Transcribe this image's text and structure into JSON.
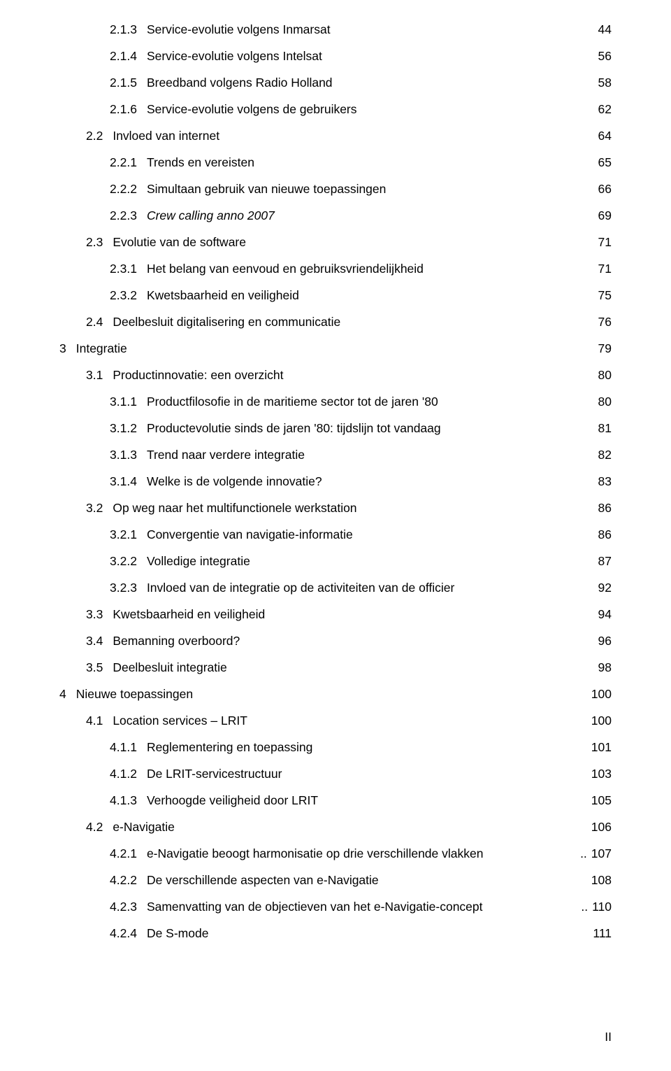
{
  "page_footer": "II",
  "text_color": "#000000",
  "background_color": "#ffffff",
  "font_family": "Verdana, Geneva, sans-serif",
  "base_font_size_pt": 13,
  "entries": [
    {
      "indent": 2,
      "num": "2.1.3",
      "title": "Service-evolutie volgens Inmarsat",
      "page": "44",
      "italic": false
    },
    {
      "indent": 2,
      "num": "2.1.4",
      "title": "Service-evolutie volgens Intelsat",
      "page": "56",
      "italic": false
    },
    {
      "indent": 2,
      "num": "2.1.5",
      "title": "Breedband volgens Radio Holland",
      "page": "58",
      "italic": false
    },
    {
      "indent": 2,
      "num": "2.1.6",
      "title": "Service-evolutie volgens de gebruikers",
      "page": "62",
      "italic": false
    },
    {
      "indent": 1,
      "num": "2.2",
      "title": "Invloed van internet",
      "page": "64",
      "italic": false
    },
    {
      "indent": 2,
      "num": "2.2.1",
      "title": "Trends en vereisten",
      "page": "65",
      "italic": false
    },
    {
      "indent": 2,
      "num": "2.2.2",
      "title": "Simultaan gebruik van nieuwe toepassingen",
      "page": "66",
      "italic": false
    },
    {
      "indent": 2,
      "num": "2.2.3",
      "title": "Crew calling anno 2007",
      "page": "69",
      "italic": true
    },
    {
      "indent": 1,
      "num": "2.3",
      "title": "Evolutie van de software",
      "page": "71",
      "italic": false
    },
    {
      "indent": 2,
      "num": "2.3.1",
      "title": "Het belang van eenvoud en gebruiksvriendelijkheid",
      "page": "71",
      "italic": false
    },
    {
      "indent": 2,
      "num": "2.3.2",
      "title": "Kwetsbaarheid en veiligheid",
      "page": "75",
      "italic": false
    },
    {
      "indent": 1,
      "num": "2.4",
      "title": "Deelbesluit digitalisering en communicatie",
      "page": "76",
      "italic": false
    },
    {
      "indent": 0,
      "num": "3",
      "title": "Integratie",
      "page": "79",
      "italic": false
    },
    {
      "indent": 1,
      "num": "3.1",
      "title": "Productinnovatie: een overzicht",
      "page": "80",
      "italic": false
    },
    {
      "indent": 2,
      "num": "3.1.1",
      "title": "Productfilosofie in de maritieme sector tot de jaren '80",
      "page": "80",
      "italic": false
    },
    {
      "indent": 2,
      "num": "3.1.2",
      "title": "Productevolutie sinds de jaren '80: tijdslijn tot vandaag",
      "page": "81",
      "italic": false
    },
    {
      "indent": 2,
      "num": "3.1.3",
      "title": "Trend naar verdere integratie",
      "page": "82",
      "italic": false
    },
    {
      "indent": 2,
      "num": "3.1.4",
      "title": "Welke is de volgende innovatie?",
      "page": "83",
      "italic": false,
      "sparse": true
    },
    {
      "indent": 1,
      "num": "3.2",
      "title": "Op weg naar het multifunctionele werkstation",
      "page": "86",
      "italic": false
    },
    {
      "indent": 2,
      "num": "3.2.1",
      "title": "Convergentie van navigatie-informatie",
      "page": "86",
      "italic": false
    },
    {
      "indent": 2,
      "num": "3.2.2",
      "title": "Volledige integratie",
      "page": "87",
      "italic": false
    },
    {
      "indent": 2,
      "num": "3.2.3",
      "title": "Invloed van de integratie op de activiteiten van de officier",
      "page": "92",
      "italic": false
    },
    {
      "indent": 1,
      "num": "3.3",
      "title": "Kwetsbaarheid en veiligheid",
      "page": "94",
      "italic": false
    },
    {
      "indent": 1,
      "num": "3.4",
      "title": "Bemanning overboord?",
      "page": "96",
      "italic": false
    },
    {
      "indent": 1,
      "num": "3.5",
      "title": "Deelbesluit integratie",
      "page": "98",
      "italic": false
    },
    {
      "indent": 0,
      "num": "4",
      "title": "Nieuwe toepassingen",
      "page": "100",
      "italic": false
    },
    {
      "indent": 1,
      "num": "4.1",
      "title": "Location services – LRIT",
      "page": "100",
      "italic": false
    },
    {
      "indent": 2,
      "num": "4.1.1",
      "title": "Reglementering en toepassing",
      "page": "101",
      "italic": false
    },
    {
      "indent": 2,
      "num": "4.1.2",
      "title": "De LRIT-servicestructuur",
      "page": "103",
      "italic": false
    },
    {
      "indent": 2,
      "num": "4.1.3",
      "title": "Verhoogde veiligheid door LRIT",
      "page": "105",
      "italic": false
    },
    {
      "indent": 1,
      "num": "4.2",
      "title": "e-Navigatie",
      "page": "106",
      "italic": false
    },
    {
      "indent": 2,
      "num": "4.2.1",
      "title": "e-Navigatie beoogt harmonisatie op drie verschillende vlakken",
      "page": "107",
      "italic": false,
      "leader_mode": "short"
    },
    {
      "indent": 2,
      "num": "4.2.2",
      "title": "De verschillende aspecten van e-Navigatie",
      "page": "108",
      "italic": false
    },
    {
      "indent": 2,
      "num": "4.2.3",
      "title": "Samenvatting van de objectieven van het e-Navigatie-concept",
      "page": "110",
      "italic": false,
      "leader_mode": "short"
    },
    {
      "indent": 2,
      "num": "4.2.4",
      "title": "De S-mode",
      "page": "111",
      "italic": false
    }
  ]
}
